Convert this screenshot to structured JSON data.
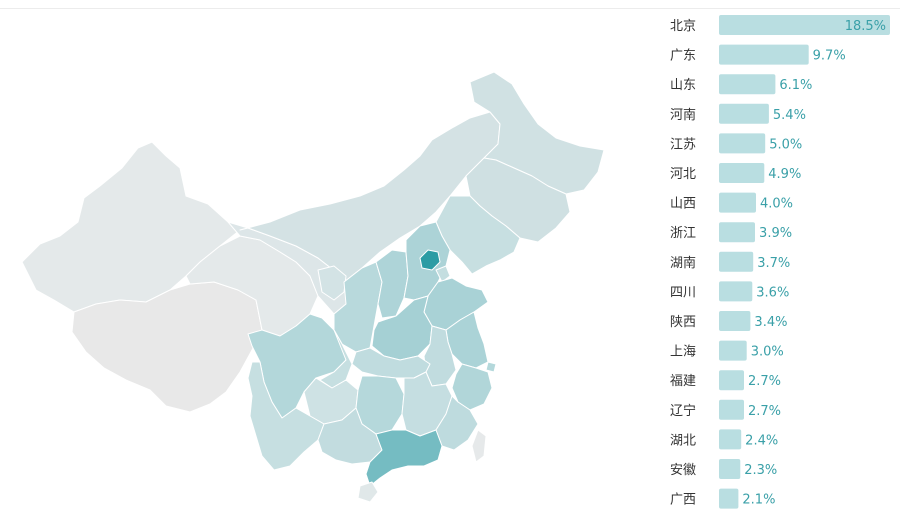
{
  "chart_data": [
    {
      "type": "choropleth",
      "region": "China",
      "highlighted": [
        "北京",
        "广东"
      ],
      "colors": {
        "base": "#e6e6e6",
        "low": "#cfe0e2",
        "mid": "#a6d0d4",
        "high": "#2a9aa2"
      }
    },
    {
      "type": "bar",
      "orientation": "horizontal",
      "categories": [
        "北京",
        "广东",
        "山东",
        "河南",
        "江苏",
        "河北",
        "山西",
        "浙江",
        "湖南",
        "四川",
        "陕西",
        "上海",
        "福建",
        "辽宁",
        "湖北",
        "安徽",
        "广西"
      ],
      "values": [
        18.5,
        9.7,
        6.1,
        5.4,
        5.0,
        4.9,
        4.0,
        3.9,
        3.7,
        3.6,
        3.4,
        3.0,
        2.7,
        2.7,
        2.4,
        2.3,
        2.1
      ],
      "value_labels": [
        "18.5%",
        "9.7%",
        "6.1%",
        "5.4%",
        "5.0%",
        "4.9%",
        "4.0%",
        "3.9%",
        "3.7%",
        "3.6%",
        "3.4%",
        "3.0%",
        "2.7%",
        "2.7%",
        "2.4%",
        "2.3%",
        "2.1%"
      ],
      "unit": "%",
      "bar_color": "#b9dee1",
      "label_color": "#3aa0a8"
    }
  ]
}
